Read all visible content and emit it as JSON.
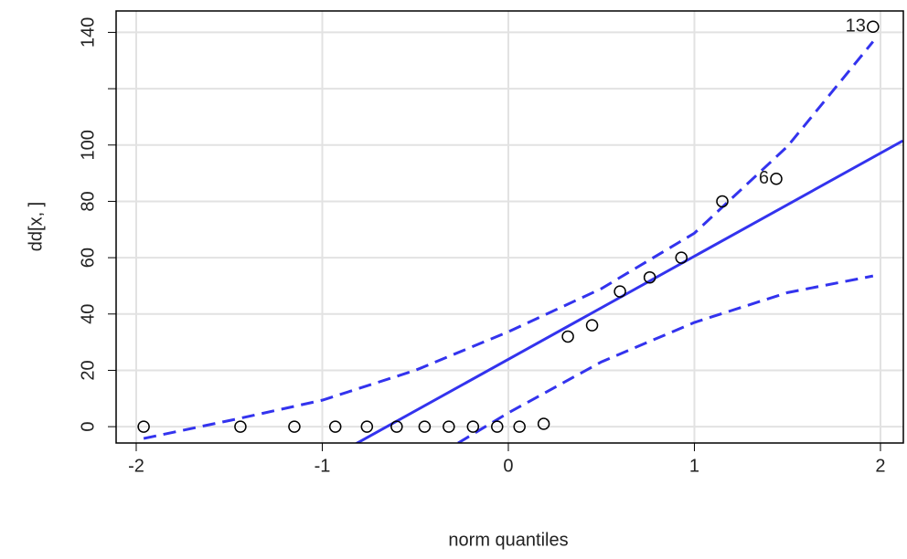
{
  "chart_data": {
    "type": "scatter",
    "x_label": "norm quantiles",
    "y_label": "dd[x, ]",
    "xlim": [
      -2.108,
      2.123
    ],
    "ylim": [
      -5.8,
      147.6
    ],
    "xticks": [
      -2,
      -1,
      0,
      1,
      2
    ],
    "yticks": [
      0,
      20,
      40,
      60,
      80,
      100,
      {
        "value": 120,
        "label": null
      },
      140
    ],
    "grid": true,
    "points": {
      "color": "#000000",
      "x": [
        -1.96,
        -1.44,
        -1.15,
        -0.93,
        -0.76,
        -0.6,
        -0.45,
        -0.32,
        -0.19,
        -0.06,
        0.06,
        0.19,
        0.32,
        0.45,
        0.6,
        0.76,
        0.93,
        1.15,
        1.44,
        1.96
      ],
      "values": [
        0,
        0,
        0,
        0,
        0,
        0,
        0,
        0,
        0,
        0,
        0,
        1,
        32,
        36,
        48,
        53,
        60,
        80,
        88,
        142
      ],
      "point_labels": [
        null,
        null,
        null,
        null,
        null,
        null,
        null,
        null,
        null,
        null,
        null,
        null,
        null,
        null,
        null,
        null,
        null,
        null,
        "6",
        "13"
      ]
    },
    "line": {
      "color": "#3333ee",
      "x": [
        -0.82,
        2.12
      ],
      "values": [
        -6.1,
        101.5
      ]
    },
    "envelope": [
      {
        "color": "#3333ee",
        "x": [
          -1.96,
          -1.44,
          -1,
          -0.5,
          0,
          0.5,
          1,
          1.5,
          1.96
        ],
        "values": [
          -4.2,
          3,
          9.4,
          20,
          33.7,
          49,
          68.7,
          99.5,
          136.7
        ]
      },
      {
        "color": "#3333ee",
        "x": [
          -0.27,
          0,
          0.5,
          1,
          1.5,
          1.96
        ],
        "values": [
          -5.8,
          4.9,
          23,
          37,
          47.6,
          53.5
        ]
      }
    ]
  }
}
